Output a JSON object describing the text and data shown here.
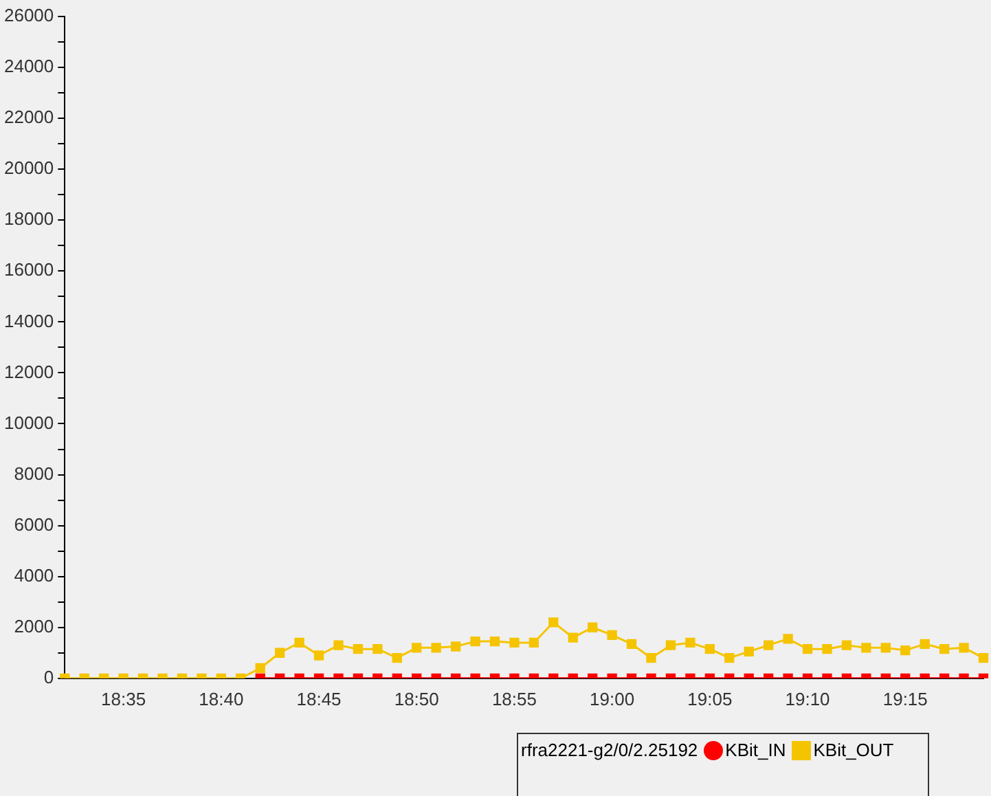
{
  "chart_data": {
    "type": "line",
    "legend_title": "rfra2221-g2/0/2.25192",
    "categories": [
      null,
      null,
      null,
      "18:35",
      null,
      null,
      null,
      null,
      "18:40",
      null,
      null,
      null,
      null,
      "18:45",
      null,
      null,
      null,
      null,
      "18:50",
      null,
      null,
      null,
      null,
      "18:55",
      null,
      null,
      null,
      null,
      "19:00",
      null,
      null,
      null,
      null,
      "19:05",
      null,
      null,
      null,
      null,
      "19:10",
      null,
      null,
      null,
      null,
      "19:15",
      null,
      null,
      null,
      null
    ],
    "series": [
      {
        "name": "KBit_IN",
        "color": "#ff0000",
        "values": [
          null,
          null,
          null,
          null,
          null,
          null,
          null,
          null,
          null,
          null,
          0,
          0,
          0,
          0,
          0,
          0,
          0,
          0,
          0,
          0,
          0,
          0,
          0,
          0,
          0,
          0,
          0,
          0,
          0,
          0,
          0,
          0,
          0,
          0,
          0,
          0,
          0,
          0,
          0,
          0,
          0,
          0,
          0,
          0,
          0,
          0,
          0,
          0
        ]
      },
      {
        "name": "KBit_OUT",
        "color": "#f5c400",
        "values": [
          0,
          0,
          0,
          0,
          0,
          0,
          0,
          0,
          0,
          0,
          400,
          1000,
          1400,
          900,
          1300,
          1150,
          1150,
          800,
          1200,
          1200,
          1250,
          1450,
          1450,
          1400,
          1400,
          2200,
          1600,
          2000,
          1700,
          1350,
          800,
          1300,
          1400,
          1150,
          800,
          1050,
          1300,
          1550,
          1150,
          1150,
          1300,
          1200,
          1200,
          1100,
          1350,
          1150,
          1200,
          800
        ]
      }
    ],
    "ylim": [
      0,
      26000
    ],
    "yticks": [
      0,
      {
        "value": 1000,
        "label": null
      },
      2000,
      {
        "value": 3000,
        "label": null
      },
      4000,
      {
        "value": 5000,
        "label": null
      },
      6000,
      {
        "value": 7000,
        "label": null
      },
      8000,
      {
        "value": 9000,
        "label": null
      },
      10000,
      {
        "value": 11000,
        "label": null
      },
      12000,
      {
        "value": 13000,
        "label": null
      },
      14000,
      {
        "value": 15000,
        "label": null
      },
      16000,
      {
        "value": 17000,
        "label": null
      },
      18000,
      {
        "value": 19000,
        "label": null
      },
      20000,
      {
        "value": 21000,
        "label": null
      },
      22000,
      {
        "value": 23000,
        "label": null
      },
      24000,
      {
        "value": 25000,
        "label": null
      },
      26000
    ],
    "grid": false,
    "legend": "bottom",
    "marker": "square",
    "line_style": "solid"
  }
}
